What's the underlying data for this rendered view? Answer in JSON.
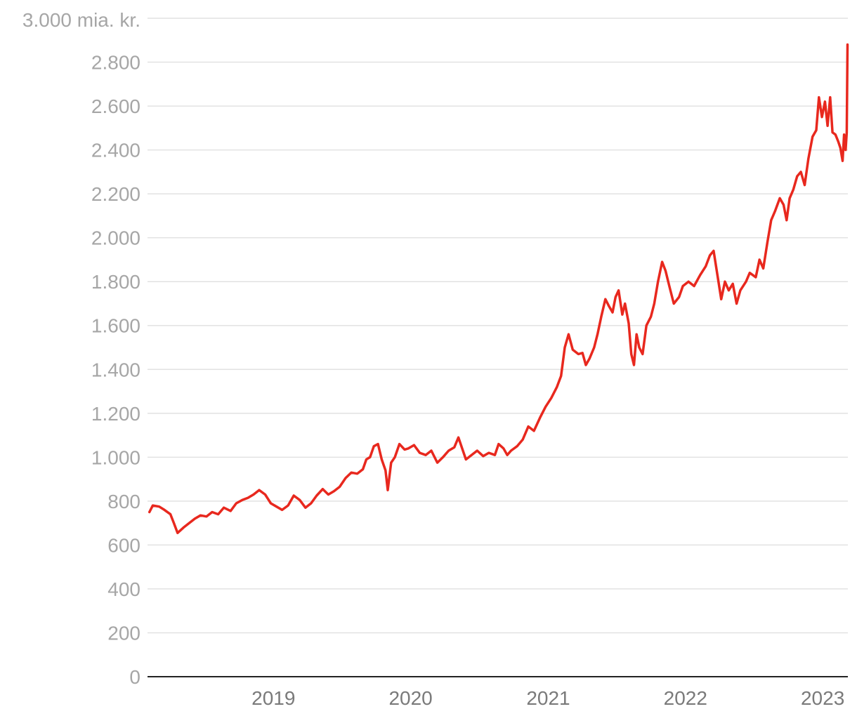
{
  "chart_data": {
    "type": "line",
    "title": "",
    "xlabel": "",
    "ylabel": "",
    "y_unit_label": "3.000 mia. kr.",
    "ylim": [
      0,
      3000
    ],
    "yticks": [
      {
        "value": 0,
        "label": "0"
      },
      {
        "value": 200,
        "label": "200"
      },
      {
        "value": 400,
        "label": "400"
      },
      {
        "value": 600,
        "label": "600"
      },
      {
        "value": 800,
        "label": "800"
      },
      {
        "value": 1000,
        "label": "1.000"
      },
      {
        "value": 1200,
        "label": "1.200"
      },
      {
        "value": 1400,
        "label": "1.400"
      },
      {
        "value": 1600,
        "label": "1.600"
      },
      {
        "value": 1800,
        "label": "1.800"
      },
      {
        "value": 2000,
        "label": "2.000"
      },
      {
        "value": 2200,
        "label": "2.200"
      },
      {
        "value": 2400,
        "label": "2.400"
      },
      {
        "value": 2600,
        "label": "2.600"
      },
      {
        "value": 2800,
        "label": "2.800"
      }
    ],
    "xlim": [
      "2018-08-01",
      "2023-09-07"
    ],
    "xticks": [
      {
        "value": "2019-01-01",
        "label": "2019"
      },
      {
        "value": "2020-01-01",
        "label": "2020"
      },
      {
        "value": "2021-01-01",
        "label": "2021"
      },
      {
        "value": "2022-01-01",
        "label": "2022"
      },
      {
        "value": "2023-01-01",
        "label": "2023"
      }
    ],
    "grid": true,
    "legend": "none",
    "series": [
      {
        "color": "#e8281e",
        "points": [
          [
            "2018-08-06",
            750
          ],
          [
            "2018-08-15",
            780
          ],
          [
            "2018-09-01",
            775
          ],
          [
            "2018-09-15",
            760
          ],
          [
            "2018-10-01",
            740
          ],
          [
            "2018-10-10",
            700
          ],
          [
            "2018-10-20",
            655
          ],
          [
            "2018-11-05",
            680
          ],
          [
            "2018-11-20",
            700
          ],
          [
            "2018-12-05",
            720
          ],
          [
            "2018-12-20",
            735
          ],
          [
            "2019-01-05",
            730
          ],
          [
            "2019-01-20",
            750
          ],
          [
            "2019-02-05",
            740
          ],
          [
            "2019-02-20",
            770
          ],
          [
            "2019-03-10",
            755
          ],
          [
            "2019-03-25",
            790
          ],
          [
            "2019-04-10",
            805
          ],
          [
            "2019-04-25",
            815
          ],
          [
            "2019-05-10",
            830
          ],
          [
            "2019-05-25",
            850
          ],
          [
            "2019-06-10",
            830
          ],
          [
            "2019-06-25",
            790
          ],
          [
            "2019-07-10",
            775
          ],
          [
            "2019-07-25",
            760
          ],
          [
            "2019-08-10",
            780
          ],
          [
            "2019-08-25",
            825
          ],
          [
            "2019-09-10",
            805
          ],
          [
            "2019-09-25",
            770
          ],
          [
            "2019-10-10",
            790
          ],
          [
            "2019-10-25",
            825
          ],
          [
            "2019-11-10",
            855
          ],
          [
            "2019-11-25",
            830
          ],
          [
            "2019-12-10",
            845
          ],
          [
            "2019-12-25",
            865
          ],
          [
            "2020-01-10",
            905
          ],
          [
            "2020-01-25",
            930
          ],
          [
            "2020-02-10",
            925
          ],
          [
            "2020-02-25",
            945
          ],
          [
            "2020-03-05",
            990
          ],
          [
            "2020-03-15",
            1000
          ],
          [
            "2020-03-25",
            1050
          ],
          [
            "2020-04-05",
            1060
          ],
          [
            "2020-04-15",
            990
          ],
          [
            "2020-04-25",
            940
          ],
          [
            "2020-05-01",
            850
          ],
          [
            "2020-05-10",
            975
          ],
          [
            "2020-05-20",
            1000
          ],
          [
            "2020-06-01",
            1060
          ],
          [
            "2020-06-15",
            1035
          ],
          [
            "2020-06-25",
            1040
          ],
          [
            "2020-07-10",
            1055
          ],
          [
            "2020-07-25",
            1020
          ],
          [
            "2020-08-10",
            1010
          ],
          [
            "2020-08-25",
            1030
          ],
          [
            "2020-09-10",
            975
          ],
          [
            "2020-09-25",
            1000
          ],
          [
            "2020-10-10",
            1030
          ],
          [
            "2020-10-25",
            1045
          ],
          [
            "2020-11-05",
            1090
          ],
          [
            "2020-11-15",
            1040
          ],
          [
            "2020-11-25",
            990
          ],
          [
            "2020-12-10",
            1010
          ],
          [
            "2020-12-25",
            1030
          ],
          [
            "2021-01-10",
            1005
          ],
          [
            "2021-01-25",
            1020
          ],
          [
            "2021-02-10",
            1010
          ],
          [
            "2021-02-20",
            1060
          ],
          [
            "2021-03-05",
            1040
          ],
          [
            "2021-03-15",
            1010
          ],
          [
            "2021-03-25",
            1030
          ],
          [
            "2021-04-10",
            1050
          ],
          [
            "2021-04-25",
            1080
          ],
          [
            "2021-05-10",
            1140
          ],
          [
            "2021-05-25",
            1120
          ],
          [
            "2021-06-10",
            1180
          ],
          [
            "2021-06-25",
            1230
          ],
          [
            "2021-07-10",
            1270
          ],
          [
            "2021-07-25",
            1320
          ],
          [
            "2021-08-05",
            1370
          ],
          [
            "2021-08-15",
            1500
          ],
          [
            "2021-08-25",
            1560
          ],
          [
            "2021-09-05",
            1490
          ],
          [
            "2021-09-20",
            1470
          ],
          [
            "2021-10-01",
            1475
          ],
          [
            "2021-10-10",
            1420
          ],
          [
            "2021-10-20",
            1450
          ],
          [
            "2021-11-01",
            1500
          ],
          [
            "2021-11-10",
            1560
          ],
          [
            "2021-11-20",
            1640
          ],
          [
            "2021-12-01",
            1720
          ],
          [
            "2021-12-10",
            1690
          ],
          [
            "2021-12-20",
            1660
          ],
          [
            "2021-12-28",
            1730
          ],
          [
            "2022-01-05",
            1760
          ],
          [
            "2022-01-15",
            1650
          ],
          [
            "2022-01-22",
            1700
          ],
          [
            "2022-02-01",
            1610
          ],
          [
            "2022-02-08",
            1470
          ],
          [
            "2022-02-15",
            1420
          ],
          [
            "2022-02-22",
            1560
          ],
          [
            "2022-03-01",
            1500
          ],
          [
            "2022-03-10",
            1470
          ],
          [
            "2022-03-20",
            1600
          ],
          [
            "2022-04-01",
            1640
          ],
          [
            "2022-04-10",
            1700
          ],
          [
            "2022-04-20",
            1800
          ],
          [
            "2022-05-01",
            1890
          ],
          [
            "2022-05-10",
            1850
          ],
          [
            "2022-05-20",
            1780
          ],
          [
            "2022-06-01",
            1700
          ],
          [
            "2022-06-15",
            1730
          ],
          [
            "2022-06-25",
            1780
          ],
          [
            "2022-07-10",
            1800
          ],
          [
            "2022-07-25",
            1780
          ],
          [
            "2022-08-10",
            1830
          ],
          [
            "2022-08-25",
            1870
          ],
          [
            "2022-09-05",
            1920
          ],
          [
            "2022-09-15",
            1940
          ],
          [
            "2022-09-25",
            1830
          ],
          [
            "2022-10-05",
            1720
          ],
          [
            "2022-10-15",
            1800
          ],
          [
            "2022-10-25",
            1760
          ],
          [
            "2022-11-05",
            1790
          ],
          [
            "2022-11-15",
            1700
          ],
          [
            "2022-11-25",
            1760
          ],
          [
            "2022-12-10",
            1800
          ],
          [
            "2022-12-20",
            1840
          ],
          [
            "2023-01-05",
            1820
          ],
          [
            "2023-01-15",
            1900
          ],
          [
            "2023-01-25",
            1860
          ],
          [
            "2023-02-05",
            1980
          ],
          [
            "2023-02-15",
            2080
          ],
          [
            "2023-02-25",
            2120
          ],
          [
            "2023-03-10",
            2180
          ],
          [
            "2023-03-20",
            2150
          ],
          [
            "2023-03-28",
            2080
          ],
          [
            "2023-04-05",
            2180
          ],
          [
            "2023-04-15",
            2220
          ],
          [
            "2023-04-25",
            2280
          ],
          [
            "2023-05-05",
            2300
          ],
          [
            "2023-05-15",
            2240
          ],
          [
            "2023-05-25",
            2360
          ],
          [
            "2023-06-05",
            2460
          ],
          [
            "2023-06-15",
            2490
          ],
          [
            "2023-06-22",
            2640
          ],
          [
            "2023-06-30",
            2550
          ],
          [
            "2023-07-08",
            2620
          ],
          [
            "2023-07-15",
            2510
          ],
          [
            "2023-07-22",
            2640
          ],
          [
            "2023-07-28",
            2480
          ],
          [
            "2023-08-05",
            2470
          ],
          [
            "2023-08-12",
            2440
          ],
          [
            "2023-08-18",
            2410
          ],
          [
            "2023-08-24",
            2350
          ],
          [
            "2023-08-28",
            2470
          ],
          [
            "2023-09-01",
            2400
          ],
          [
            "2023-09-04",
            2480
          ],
          [
            "2023-09-06",
            2880
          ]
        ]
      }
    ]
  }
}
